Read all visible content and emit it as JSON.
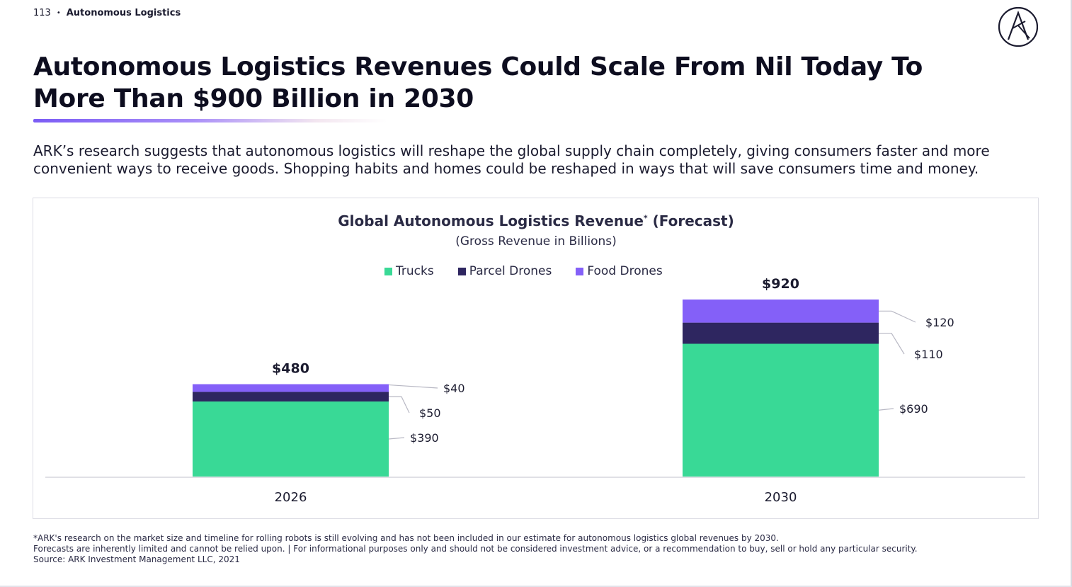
{
  "header": {
    "page_number": "113",
    "separator": "•",
    "section": "Autonomous Logistics"
  },
  "title": "Autonomous Logistics Revenues Could Scale From Nil Today To More Than $900 Billion in 2030",
  "intro": "ARK’s research suggests that autonomous logistics will reshape the global supply chain completely, giving consumers faster and more convenient ways to receive goods. Shopping habits and homes could be reshaped in ways that will save consumers time and money.",
  "chart_data": {
    "type": "bar",
    "stacked": true,
    "title": "Global Autonomous Logistics Revenue",
    "title_marker": "*",
    "title_suffix": "(Forecast)",
    "subtitle": "(Gross Revenue in Billions)",
    "categories": [
      "2026",
      "2030"
    ],
    "series": [
      {
        "name": "Trucks",
        "values": [
          390,
          690
        ],
        "color": "#39d996",
        "labels": [
          "$390",
          "$690"
        ]
      },
      {
        "name": "Parcel Drones",
        "values": [
          50,
          110
        ],
        "color": "#2e2660",
        "labels": [
          "$50",
          "$110"
        ]
      },
      {
        "name": "Food Drones",
        "values": [
          40,
          120
        ],
        "color": "#8460f8",
        "labels": [
          "$40",
          "$120"
        ]
      }
    ],
    "totals": [
      480,
      920
    ],
    "total_labels": [
      "$480",
      "$920"
    ],
    "ylim": [
      0,
      920
    ],
    "grid": false,
    "legend_position": "top"
  },
  "footnotes": [
    "*ARK's research on the market size and timeline for rolling robots is still evolving and has not been included in our estimate for autonomous logistics global revenues by 2030.",
    "Forecasts are inherently limited and cannot be relied upon. | For informational purposes only and should not be considered investment advice, or a recommendation to buy, sell or hold any particular security.",
    "Source: ARK Investment Management LLC, 2021"
  ],
  "colors": {
    "accent": "#7b5cf5",
    "trucks": "#39d996",
    "parcel_drones": "#2e2660",
    "food_drones": "#8460f8"
  },
  "icons": {
    "logo": "ark-logo-icon"
  }
}
